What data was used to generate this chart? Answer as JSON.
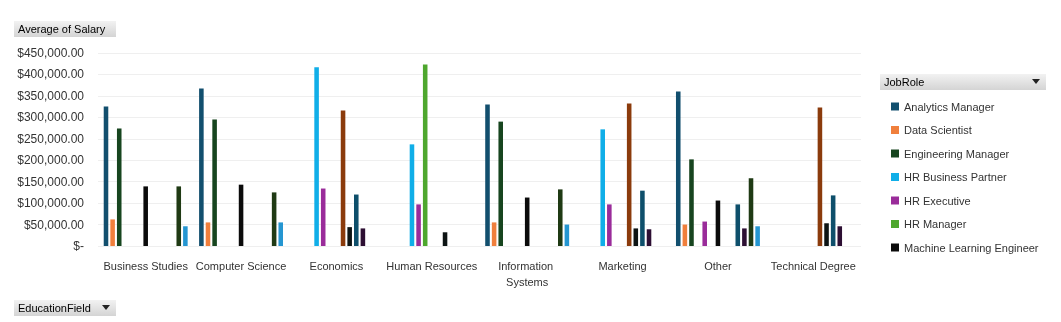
{
  "chart_data": {
    "type": "bar",
    "ylabel": "Average of Salary",
    "xlabel": "EducationField",
    "legend_title": "JobRole",
    "categories": [
      "Business Studies",
      "Computer Science",
      "Economics",
      "Human Resources",
      "Information Systems",
      "Marketing",
      "Other",
      "Technical Degree"
    ],
    "series": [
      {
        "name": "Analytics Manager",
        "color": "#124f6e",
        "values": [
          325000,
          367000,
          null,
          null,
          330000,
          null,
          360000,
          null
        ]
      },
      {
        "name": "Data Scientist",
        "color": "#f07f3c",
        "values": [
          62000,
          55000,
          null,
          null,
          55000,
          null,
          50000,
          null
        ]
      },
      {
        "name": "Engineering Manager",
        "color": "#17451f",
        "values": [
          274000,
          295000,
          null,
          null,
          290000,
          null,
          202000,
          null
        ]
      },
      {
        "name": "HR Business Partner",
        "color": "#10aee8",
        "values": [
          null,
          null,
          417000,
          237000,
          null,
          272000,
          null,
          null
        ]
      },
      {
        "name": "HR Executive",
        "color": "#9a2c9a",
        "values": [
          null,
          null,
          134000,
          97000,
          null,
          97000,
          57000,
          null
        ]
      },
      {
        "name": "HR Manager",
        "color": "#4ea72e",
        "values": [
          null,
          null,
          null,
          423000,
          null,
          null,
          null,
          null
        ]
      },
      {
        "name": "Machine Learning Engineer",
        "color": "#0b0b0b",
        "values": [
          139000,
          143000,
          null,
          null,
          113000,
          null,
          106000,
          null
        ]
      },
      {
        "color": "#8b3b0c",
        "values": [
          null,
          null,
          316000,
          null,
          null,
          332000,
          null,
          323000
        ]
      },
      {
        "color": "#0d1414",
        "values": [
          null,
          null,
          44000,
          32000,
          null,
          41000,
          null,
          53000
        ]
      },
      {
        "color": "#0e4f6b",
        "values": [
          null,
          null,
          120000,
          null,
          null,
          129000,
          97000,
          118000
        ]
      },
      {
        "color": "#2d0f33",
        "values": [
          null,
          null,
          41000,
          null,
          null,
          39000,
          41000,
          46000
        ]
      },
      {
        "color": "#1f3a14",
        "values": [
          139000,
          125000,
          null,
          null,
          132000,
          null,
          158000,
          null
        ]
      },
      {
        "color": "#2596d1",
        "values": [
          46000,
          55000,
          null,
          null,
          50000,
          null,
          46000,
          null
        ]
      }
    ],
    "ylim": [
      0,
      450000
    ],
    "yticks": [
      {
        "value": 0,
        "label": "$-"
      },
      {
        "value": 50000,
        "label": "$50,000.00"
      },
      {
        "value": 100000,
        "label": "$100,000.00"
      },
      {
        "value": 150000,
        "label": "$150,000.00"
      },
      {
        "value": 200000,
        "label": "$200,000.00"
      },
      {
        "value": 250000,
        "label": "$250,000.00"
      },
      {
        "value": 300000,
        "label": "$300,000.00"
      },
      {
        "value": 350000,
        "label": "$350,000.00"
      },
      {
        "value": 400000,
        "label": "$400,000.00"
      },
      {
        "value": 450000,
        "label": "$450,000.00"
      }
    ],
    "grid": "y",
    "legend": "right"
  }
}
